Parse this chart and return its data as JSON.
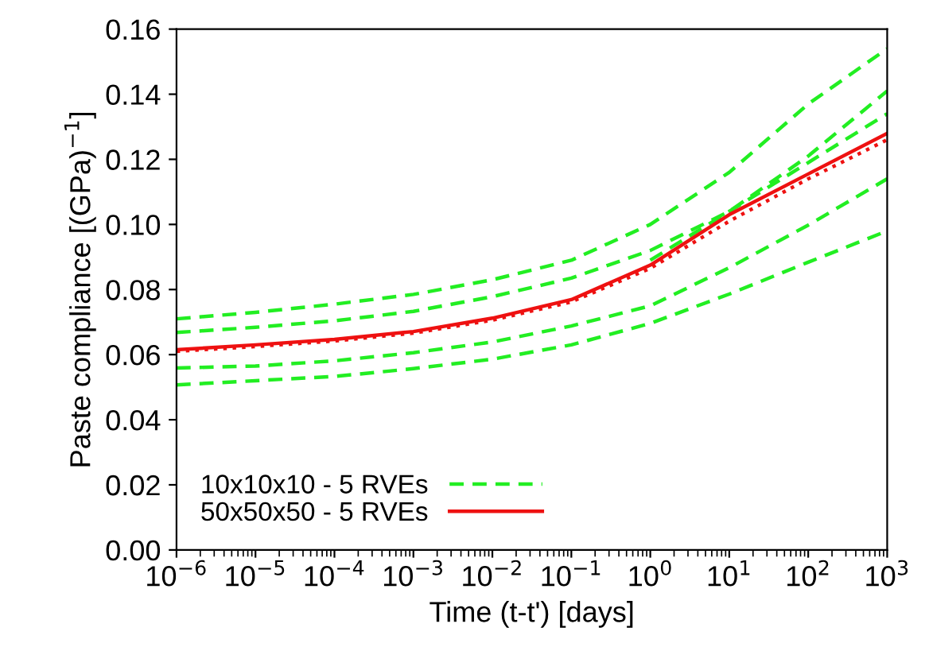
{
  "chart_data": {
    "type": "line",
    "xlabel": "Time (t-t') [days]",
    "ylabel": "Paste compliance [(GPa)$^{−1}$]",
    "log": "x",
    "x": [
      1e-06,
      1e-05,
      0.0001,
      0.001,
      0.01,
      0.1,
      1,
      10,
      100,
      1000
    ],
    "series": [
      {
        "name": "10x10x10 - 5 RVEs",
        "color": "#22ee22",
        "line_style": "dashed",
        "values": [
          0.071,
          0.073,
          0.0755,
          0.0785,
          0.083,
          0.089,
          0.1,
          0.116,
          0.137,
          0.154
        ]
      },
      {
        "color": "#22ee22",
        "line_style": "dashed",
        "values": [
          0.0668,
          0.0684,
          0.0704,
          0.0733,
          0.0778,
          0.0835,
          0.092,
          0.104,
          0.121,
          0.141
        ]
      },
      {
        "color": "#22ee22",
        "line_style": "dashed",
        "values": [
          null,
          null,
          null,
          null,
          null,
          null,
          0.089,
          0.104,
          0.119,
          0.134
        ]
      },
      {
        "color": "#22ee22",
        "line_style": "dashed",
        "values": [
          0.0559,
          0.0565,
          0.0581,
          0.0606,
          0.0639,
          0.0688,
          0.075,
          0.0867,
          0.0998,
          0.114
        ]
      },
      {
        "color": "#22ee22",
        "line_style": "dashed",
        "values": [
          0.0507,
          0.052,
          0.0533,
          0.0557,
          0.0586,
          0.063,
          0.0696,
          0.0786,
          0.0884,
          0.098
        ]
      },
      {
        "color": "#ee1111",
        "line_style": "dotted",
        "values": [
          0.061,
          0.0625,
          0.0642,
          0.0666,
          0.0706,
          0.0762,
          0.0865,
          0.101,
          0.114,
          0.126
        ]
      },
      {
        "name": "50x50x50 - 5 RVEs",
        "color": "#ee1111",
        "line_style": "solid",
        "values": [
          0.0615,
          0.063,
          0.0647,
          0.0671,
          0.0712,
          0.0769,
          0.0875,
          0.103,
          0.1155,
          0.128
        ]
      }
    ],
    "xlim": [
      1e-06,
      1000
    ],
    "xticks": [
      {
        "value": 1e-06,
        "label": "10$^{−6}$"
      },
      {
        "value": 1e-05,
        "label": "10$^{−5}$"
      },
      {
        "value": 0.0001,
        "label": "10$^{−4}$"
      },
      {
        "value": 0.001,
        "label": "10$^{−3}$"
      },
      {
        "value": 0.01,
        "label": "10$^{−2}$"
      },
      {
        "value": 0.1,
        "label": "10$^{−1}$"
      },
      {
        "value": 1,
        "label": "10$^{0}$"
      },
      {
        "value": 10,
        "label": "10$^{1}$"
      },
      {
        "value": 100,
        "label": "10$^{2}$"
      },
      {
        "value": 1000,
        "label": "10$^{3}$"
      }
    ],
    "ylim": [
      0,
      0.16
    ],
    "yticks": [
      {
        "value": 0,
        "label": "0.00"
      },
      {
        "value": 0.02,
        "label": "0.02"
      },
      {
        "value": 0.04,
        "label": "0.04"
      },
      {
        "value": 0.06,
        "label": "0.06"
      },
      {
        "value": 0.08,
        "label": "0.08"
      },
      {
        "value": 0.1,
        "label": "0.10"
      },
      {
        "value": 0.12,
        "label": "0.12"
      },
      {
        "value": 0.14,
        "label": "0.14"
      },
      {
        "value": 0.16,
        "label": "0.16"
      }
    ],
    "legend": "bottom left",
    "grid": false
  }
}
